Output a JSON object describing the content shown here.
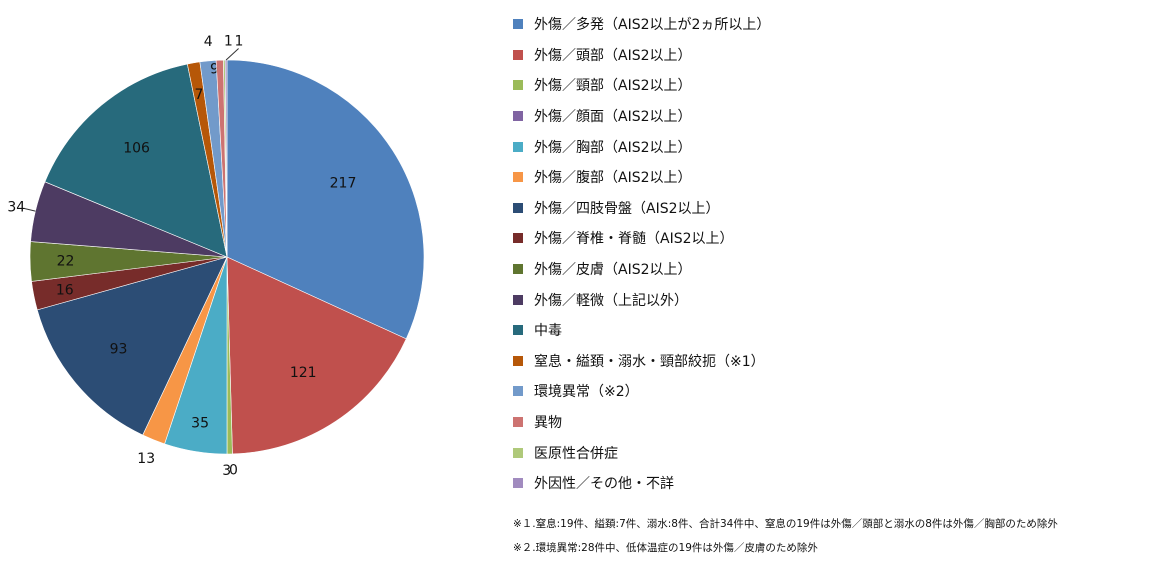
{
  "chart_data": {
    "type": "pie",
    "slices": [
      {
        "label": "外傷／多発（AIS2以上が2ヵ所以上）",
        "value": 217,
        "color": "#4F81BD"
      },
      {
        "label": "外傷／頭部（AIS2以上）",
        "value": 121,
        "color": "#C0504D"
      },
      {
        "label": "外傷／頸部（AIS2以上）",
        "value": 3,
        "color": "#9BBB59"
      },
      {
        "label": "外傷／顔面（AIS2以上）",
        "value": 0,
        "color": "#8064A2"
      },
      {
        "label": "外傷／胸部（AIS2以上）",
        "value": 35,
        "color": "#4BACC6"
      },
      {
        "label": "外傷／腹部（AIS2以上）",
        "value": 13,
        "color": "#F79646"
      },
      {
        "label": "外傷／四肢骨盤（AIS2以上）",
        "value": 93,
        "color": "#2C4D75"
      },
      {
        "label": "外傷／脊椎・脊髄（AIS2以上）",
        "value": 16,
        "color": "#772C2A"
      },
      {
        "label": "外傷／皮膚（AIS2以上）",
        "value": 22,
        "color": "#5F7530"
      },
      {
        "label": "外傷／軽微（上記以外）",
        "value": 34,
        "color": "#4D3B62"
      },
      {
        "label": "中毒",
        "value": 106,
        "color": "#276A7C"
      },
      {
        "label": "窒息・縊頚・溺水・頸部絞扼（※1）",
        "value": 7,
        "color": "#B65708"
      },
      {
        "label": "環境異常（※2）",
        "value": 9,
        "color": "#729ACA"
      },
      {
        "label": "異物",
        "value": 4,
        "color": "#CD7371"
      },
      {
        "label": "医原性合併症",
        "value": 1,
        "color": "#AFC97A"
      },
      {
        "label": "外因性／その他・不詳",
        "value": 1,
        "color": "#A18BBF"
      }
    ],
    "data_labels": [
      "217",
      "121",
      "3",
      "0",
      "35",
      "13",
      "93",
      "16",
      "22",
      "34",
      "106",
      "7",
      "9",
      "4",
      "1",
      "1"
    ],
    "legend_position": "right"
  },
  "notes": [
    "※１.窒息:19件、縊頚:7件、溺水:8件、合計34件中、窒息の19件は外傷／頭部と溺水の8件は外傷／胸部のため除外",
    "※２.環境異常:28件中、低体温症の19件は外傷／皮膚のため除外"
  ]
}
